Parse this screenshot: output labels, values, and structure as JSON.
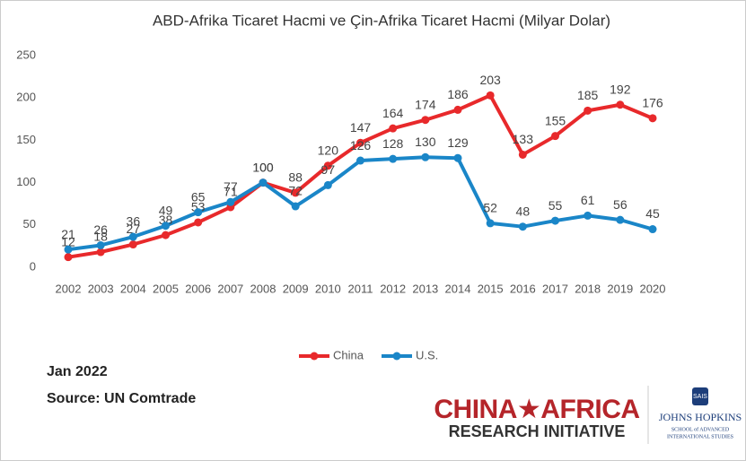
{
  "chart_data": {
    "type": "line",
    "title": "ABD-Afrika Ticaret Hacmi ve Çin-Afrika Ticaret Hacmi (Milyar Dolar)",
    "categories": [
      "2002",
      "2003",
      "2004",
      "2005",
      "2006",
      "2007",
      "2008",
      "2009",
      "2010",
      "2011",
      "2012",
      "2013",
      "2014",
      "2015",
      "2016",
      "2017",
      "2018",
      "2019",
      "2020"
    ],
    "series": [
      {
        "name": "China",
        "color": "#e8292b",
        "values": [
          12,
          18,
          27,
          38,
          53,
          71,
          100,
          88,
          120,
          147,
          164,
          174,
          186,
          203,
          133,
          155,
          185,
          192,
          176
        ]
      },
      {
        "name": "U.S.",
        "color": "#1a86c8",
        "values": [
          21,
          26,
          36,
          49,
          65,
          77,
          100,
          72,
          97,
          126,
          128,
          130,
          129,
          52,
          48,
          55,
          61,
          56,
          45
        ]
      }
    ],
    "ylim": [
      0,
      250
    ],
    "yticks": [
      0,
      50,
      100,
      150,
      200,
      250
    ],
    "grid": false,
    "legend": "bottom"
  },
  "notes": [
    "Jan 2022",
    "Source: UN Comtrade"
  ],
  "logos": {
    "car_line1": "CHINA★AFRICA",
    "car_line2": "RESEARCH INITIATIVE",
    "jhu_badge": "SAIS",
    "jhu_name": "JOHNS HOPKINS",
    "jhu_sub1": "SCHOOL of ADVANCED",
    "jhu_sub2": "INTERNATIONAL STUDIES"
  }
}
